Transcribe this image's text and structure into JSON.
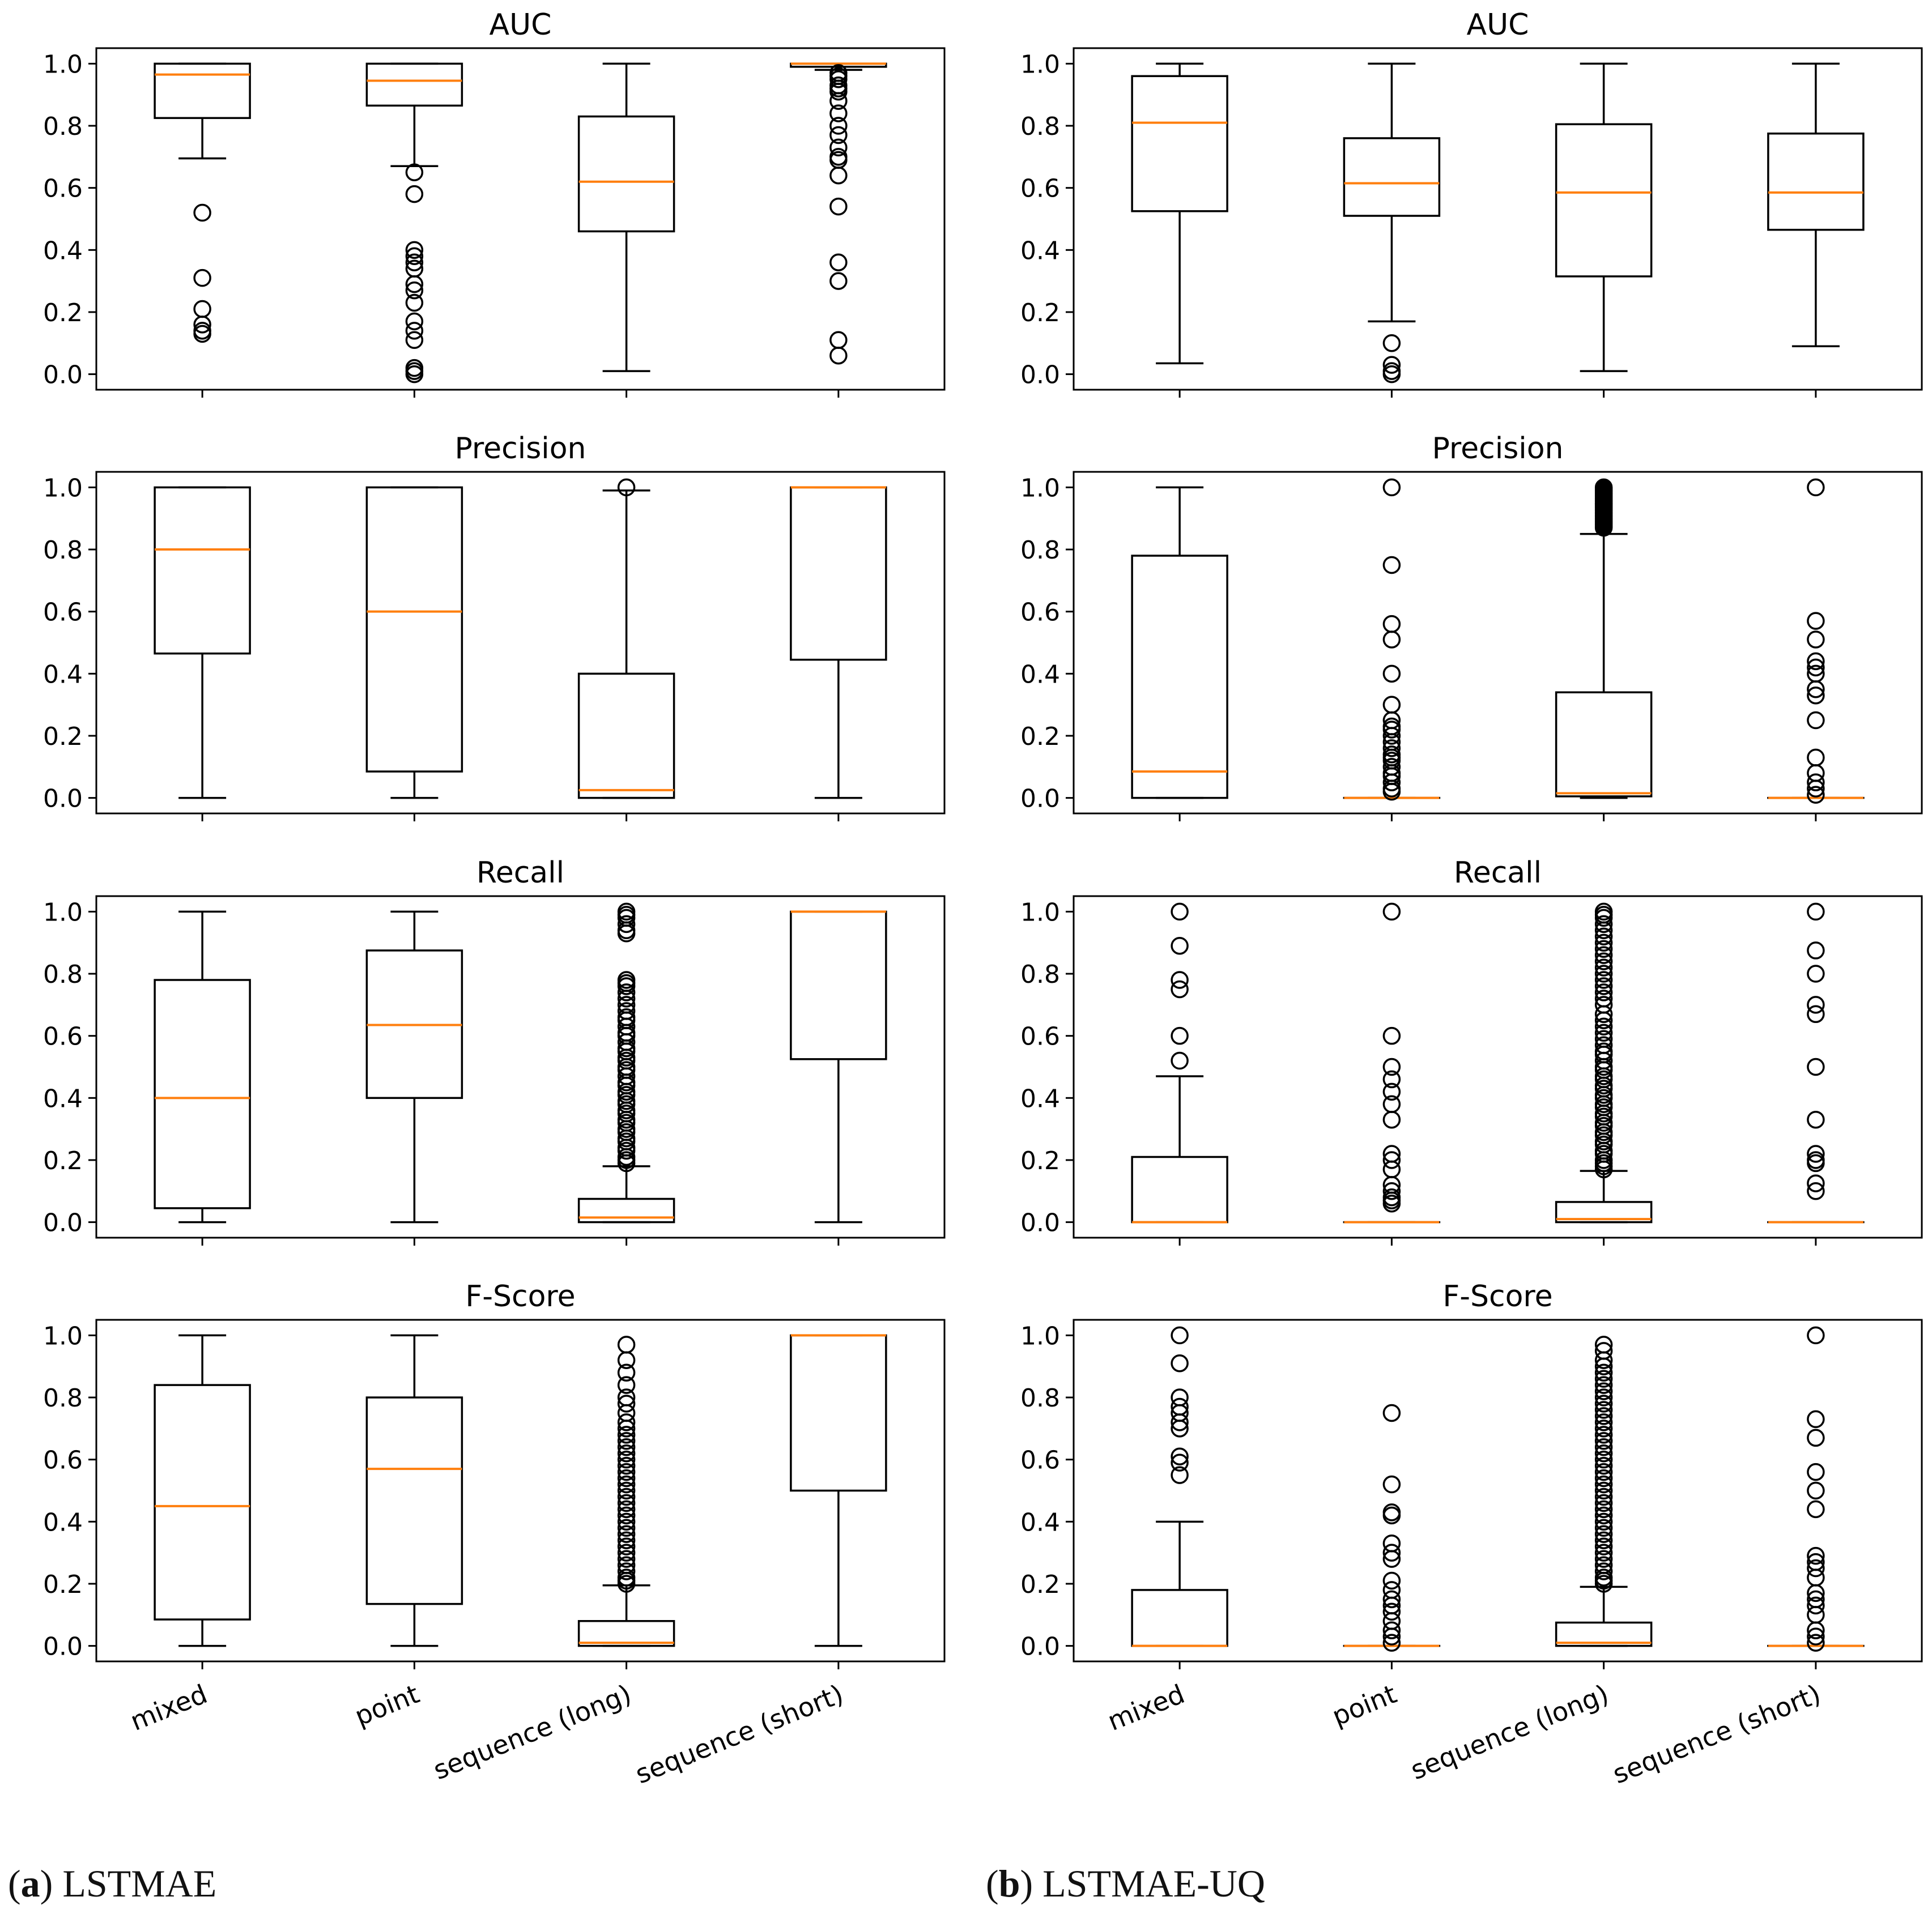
{
  "figure": {
    "captions": [
      {
        "letter": "a",
        "text": "LSTMAE"
      },
      {
        "letter": "b",
        "text": "LSTMAE-UQ"
      }
    ]
  },
  "colors": {
    "box": "#000000",
    "median": "#ff7f0e",
    "background": "#ffffff"
  },
  "chart_data": [
    {
      "type": "box",
      "panel": "a",
      "title": "AUC",
      "categories": [
        "mixed",
        "point",
        "sequence (long)",
        "sequence (short)"
      ],
      "ylim": [
        -0.05,
        1.05
      ],
      "yticks": [
        "0.0",
        "0.2",
        "0.4",
        "0.6",
        "0.8",
        "1.0"
      ],
      "boxes": [
        {
          "q1": 0.825,
          "median": 0.965,
          "q3": 1.0,
          "whislo": 0.695,
          "whishi": 1.0,
          "fliers": [
            0.52,
            0.31,
            0.21,
            0.16,
            0.14,
            0.13
          ]
        },
        {
          "q1": 0.865,
          "median": 0.945,
          "q3": 1.0,
          "whislo": 0.67,
          "whishi": 1.0,
          "fliers": [
            0.65,
            0.58,
            0.4,
            0.38,
            0.36,
            0.34,
            0.29,
            0.27,
            0.23,
            0.17,
            0.14,
            0.11,
            0.02,
            0.01,
            0.0
          ]
        },
        {
          "q1": 0.46,
          "median": 0.62,
          "q3": 0.83,
          "whislo": 0.01,
          "whishi": 1.0,
          "fliers": []
        },
        {
          "q1": 0.99,
          "median": 1.0,
          "q3": 1.0,
          "whislo": 0.98,
          "whishi": 1.0,
          "fliers": [
            0.97,
            0.96,
            0.95,
            0.93,
            0.92,
            0.91,
            0.88,
            0.84,
            0.8,
            0.77,
            0.73,
            0.7,
            0.69,
            0.64,
            0.54,
            0.36,
            0.3,
            0.11,
            0.06
          ]
        }
      ]
    },
    {
      "type": "box",
      "panel": "b",
      "title": "AUC",
      "categories": [
        "mixed",
        "point",
        "sequence (long)",
        "sequence (short)"
      ],
      "ylim": [
        -0.05,
        1.05
      ],
      "yticks": [
        "0.0",
        "0.2",
        "0.4",
        "0.6",
        "0.8",
        "1.0"
      ],
      "boxes": [
        {
          "q1": 0.525,
          "median": 0.81,
          "q3": 0.96,
          "whislo": 0.035,
          "whishi": 1.0,
          "fliers": []
        },
        {
          "q1": 0.51,
          "median": 0.615,
          "q3": 0.76,
          "whislo": 0.17,
          "whishi": 1.0,
          "fliers": [
            0.1,
            0.03,
            0.01,
            0.0
          ]
        },
        {
          "q1": 0.315,
          "median": 0.585,
          "q3": 0.805,
          "whislo": 0.01,
          "whishi": 1.0,
          "fliers": []
        },
        {
          "q1": 0.465,
          "median": 0.585,
          "q3": 0.775,
          "whislo": 0.09,
          "whishi": 1.0,
          "fliers": []
        }
      ]
    },
    {
      "type": "box",
      "panel": "a",
      "title": "Precision",
      "categories": [
        "mixed",
        "point",
        "sequence (long)",
        "sequence (short)"
      ],
      "ylim": [
        -0.05,
        1.05
      ],
      "yticks": [
        "0.0",
        "0.2",
        "0.4",
        "0.6",
        "0.8",
        "1.0"
      ],
      "boxes": [
        {
          "q1": 0.465,
          "median": 0.8,
          "q3": 1.0,
          "whislo": 0.0,
          "whishi": 1.0,
          "fliers": []
        },
        {
          "q1": 0.085,
          "median": 0.6,
          "q3": 1.0,
          "whislo": 0.0,
          "whishi": 1.0,
          "fliers": []
        },
        {
          "q1": 0.0,
          "median": 0.025,
          "q3": 0.4,
          "whislo": 0.0,
          "whishi": 0.99,
          "fliers": [
            1.0
          ]
        },
        {
          "q1": 0.445,
          "median": 1.0,
          "q3": 1.0,
          "whislo": 0.0,
          "whishi": 1.0,
          "fliers": []
        }
      ]
    },
    {
      "type": "box",
      "panel": "b",
      "title": "Precision",
      "categories": [
        "mixed",
        "point",
        "sequence (long)",
        "sequence (short)"
      ],
      "ylim": [
        -0.05,
        1.05
      ],
      "yticks": [
        "0.0",
        "0.2",
        "0.4",
        "0.6",
        "0.8",
        "1.0"
      ],
      "boxes": [
        {
          "q1": 0.0,
          "median": 0.085,
          "q3": 0.78,
          "whislo": 0.0,
          "whishi": 1.0,
          "fliers": []
        },
        {
          "q1": 0.0,
          "median": 0.0,
          "q3": 0.0,
          "whislo": 0.0,
          "whishi": 0.0,
          "fliers": [
            1.0,
            0.75,
            0.56,
            0.51,
            0.4,
            0.3,
            0.25,
            0.23,
            0.22,
            0.2,
            0.18,
            0.16,
            0.14,
            0.13,
            0.12,
            0.1,
            0.08,
            0.07,
            0.05,
            0.03,
            0.02
          ]
        },
        {
          "q1": 0.005,
          "median": 0.015,
          "q3": 0.34,
          "whislo": 0.0,
          "whishi": 0.85,
          "fliers": [
            1.0,
            0.995,
            0.99,
            0.985,
            0.98,
            0.975,
            0.97,
            0.965,
            0.96,
            0.955,
            0.95,
            0.945,
            0.94,
            0.935,
            0.93,
            0.925,
            0.92,
            0.915,
            0.91,
            0.905,
            0.9,
            0.895,
            0.89,
            0.885,
            0.88,
            0.875,
            0.87
          ]
        },
        {
          "q1": 0.0,
          "median": 0.0,
          "q3": 0.0,
          "whislo": 0.0,
          "whishi": 0.0,
          "fliers": [
            1.0,
            0.57,
            0.51,
            0.44,
            0.42,
            0.4,
            0.35,
            0.33,
            0.25,
            0.13,
            0.08,
            0.05,
            0.03,
            0.01
          ]
        }
      ]
    },
    {
      "type": "box",
      "panel": "a",
      "title": "Recall",
      "categories": [
        "mixed",
        "point",
        "sequence (long)",
        "sequence (short)"
      ],
      "ylim": [
        -0.05,
        1.05
      ],
      "yticks": [
        "0.0",
        "0.2",
        "0.4",
        "0.6",
        "0.8",
        "1.0"
      ],
      "boxes": [
        {
          "q1": 0.045,
          "median": 0.4,
          "q3": 0.78,
          "whislo": 0.0,
          "whishi": 1.0,
          "fliers": []
        },
        {
          "q1": 0.4,
          "median": 0.635,
          "q3": 0.875,
          "whislo": 0.0,
          "whishi": 1.0,
          "fliers": []
        },
        {
          "q1": 0.0,
          "median": 0.015,
          "q3": 0.075,
          "whislo": 0.0,
          "whishi": 0.18,
          "fliers": [
            1.0,
            0.99,
            0.98,
            0.96,
            0.94,
            0.93,
            0.78,
            0.77,
            0.76,
            0.74,
            0.72,
            0.7,
            0.68,
            0.66,
            0.65,
            0.63,
            0.61,
            0.6,
            0.58,
            0.56,
            0.55,
            0.53,
            0.52,
            0.5,
            0.49,
            0.47,
            0.45,
            0.44,
            0.42,
            0.41,
            0.39,
            0.38,
            0.36,
            0.35,
            0.33,
            0.32,
            0.3,
            0.29,
            0.27,
            0.26,
            0.24,
            0.23,
            0.21,
            0.2,
            0.19
          ]
        },
        {
          "q1": 0.525,
          "median": 1.0,
          "q3": 1.0,
          "whislo": 0.0,
          "whishi": 1.0,
          "fliers": []
        }
      ]
    },
    {
      "type": "box",
      "panel": "b",
      "title": "Recall",
      "categories": [
        "mixed",
        "point",
        "sequence (long)",
        "sequence (short)"
      ],
      "ylim": [
        -0.05,
        1.05
      ],
      "yticks": [
        "0.0",
        "0.2",
        "0.4",
        "0.6",
        "0.8",
        "1.0"
      ],
      "boxes": [
        {
          "q1": 0.0,
          "median": 0.0,
          "q3": 0.21,
          "whislo": 0.0,
          "whishi": 0.47,
          "fliers": [
            1.0,
            0.89,
            0.78,
            0.75,
            0.6,
            0.52
          ]
        },
        {
          "q1": 0.0,
          "median": 0.0,
          "q3": 0.0,
          "whislo": 0.0,
          "whishi": 0.0,
          "fliers": [
            1.0,
            0.6,
            0.5,
            0.46,
            0.42,
            0.38,
            0.33,
            0.22,
            0.2,
            0.17,
            0.12,
            0.1,
            0.08,
            0.07,
            0.06
          ]
        },
        {
          "q1": 0.0,
          "median": 0.01,
          "q3": 0.065,
          "whislo": 0.0,
          "whishi": 0.165,
          "fliers": [
            1.0,
            0.99,
            0.98,
            0.96,
            0.94,
            0.92,
            0.9,
            0.88,
            0.86,
            0.84,
            0.82,
            0.8,
            0.78,
            0.76,
            0.74,
            0.72,
            0.7,
            0.67,
            0.65,
            0.63,
            0.61,
            0.59,
            0.57,
            0.55,
            0.54,
            0.52,
            0.5,
            0.49,
            0.47,
            0.46,
            0.44,
            0.43,
            0.41,
            0.4,
            0.38,
            0.37,
            0.35,
            0.34,
            0.32,
            0.31,
            0.29,
            0.28,
            0.26,
            0.25,
            0.23,
            0.22,
            0.2,
            0.19,
            0.18,
            0.17
          ]
        },
        {
          "q1": 0.0,
          "median": 0.0,
          "q3": 0.0,
          "whislo": 0.0,
          "whishi": 0.0,
          "fliers": [
            1.0,
            0.875,
            0.8,
            0.7,
            0.67,
            0.5,
            0.33,
            0.22,
            0.2,
            0.19,
            0.125,
            0.1
          ]
        }
      ]
    },
    {
      "type": "box",
      "panel": "a",
      "title": "F-Score",
      "categories": [
        "mixed",
        "point",
        "sequence (long)",
        "sequence (short)"
      ],
      "ylim": [
        -0.05,
        1.05
      ],
      "yticks": [
        "0.0",
        "0.2",
        "0.4",
        "0.6",
        "0.8",
        "1.0"
      ],
      "boxes": [
        {
          "q1": 0.085,
          "median": 0.45,
          "q3": 0.84,
          "whislo": 0.0,
          "whishi": 1.0,
          "fliers": []
        },
        {
          "q1": 0.135,
          "median": 0.57,
          "q3": 0.8,
          "whislo": 0.0,
          "whishi": 1.0,
          "fliers": []
        },
        {
          "q1": 0.0,
          "median": 0.01,
          "q3": 0.08,
          "whislo": 0.0,
          "whishi": 0.195,
          "fliers": [
            0.97,
            0.92,
            0.88,
            0.84,
            0.8,
            0.78,
            0.75,
            0.72,
            0.7,
            0.68,
            0.66,
            0.64,
            0.62,
            0.6,
            0.58,
            0.56,
            0.54,
            0.52,
            0.5,
            0.48,
            0.46,
            0.44,
            0.42,
            0.4,
            0.38,
            0.36,
            0.34,
            0.32,
            0.3,
            0.28,
            0.26,
            0.24,
            0.22,
            0.21,
            0.2
          ]
        },
        {
          "q1": 0.5,
          "median": 1.0,
          "q3": 1.0,
          "whislo": 0.0,
          "whishi": 1.0,
          "fliers": []
        }
      ]
    },
    {
      "type": "box",
      "panel": "b",
      "title": "F-Score",
      "categories": [
        "mixed",
        "point",
        "sequence (long)",
        "sequence (short)"
      ],
      "ylim": [
        -0.05,
        1.05
      ],
      "yticks": [
        "0.0",
        "0.2",
        "0.4",
        "0.6",
        "0.8",
        "1.0"
      ],
      "boxes": [
        {
          "q1": 0.0,
          "median": 0.0,
          "q3": 0.18,
          "whislo": 0.0,
          "whishi": 0.4,
          "fliers": [
            1.0,
            0.91,
            0.8,
            0.77,
            0.75,
            0.72,
            0.7,
            0.61,
            0.59,
            0.55
          ]
        },
        {
          "q1": 0.0,
          "median": 0.0,
          "q3": 0.0,
          "whislo": 0.0,
          "whishi": 0.0,
          "fliers": [
            0.75,
            0.52,
            0.43,
            0.42,
            0.33,
            0.3,
            0.28,
            0.21,
            0.18,
            0.15,
            0.13,
            0.11,
            0.08,
            0.05,
            0.03,
            0.01
          ]
        },
        {
          "q1": 0.0,
          "median": 0.01,
          "q3": 0.075,
          "whislo": 0.0,
          "whishi": 0.19,
          "fliers": [
            0.97,
            0.95,
            0.92,
            0.9,
            0.88,
            0.86,
            0.84,
            0.82,
            0.8,
            0.78,
            0.76,
            0.74,
            0.72,
            0.7,
            0.68,
            0.66,
            0.64,
            0.62,
            0.6,
            0.58,
            0.56,
            0.54,
            0.52,
            0.5,
            0.48,
            0.46,
            0.44,
            0.42,
            0.4,
            0.38,
            0.36,
            0.34,
            0.32,
            0.3,
            0.28,
            0.26,
            0.24,
            0.22,
            0.21,
            0.2
          ]
        },
        {
          "q1": 0.0,
          "median": 0.0,
          "q3": 0.0,
          "whislo": 0.0,
          "whishi": 0.0,
          "fliers": [
            1.0,
            0.73,
            0.67,
            0.56,
            0.5,
            0.44,
            0.29,
            0.27,
            0.25,
            0.22,
            0.17,
            0.15,
            0.13,
            0.1,
            0.05,
            0.03,
            0.01
          ]
        }
      ]
    }
  ]
}
